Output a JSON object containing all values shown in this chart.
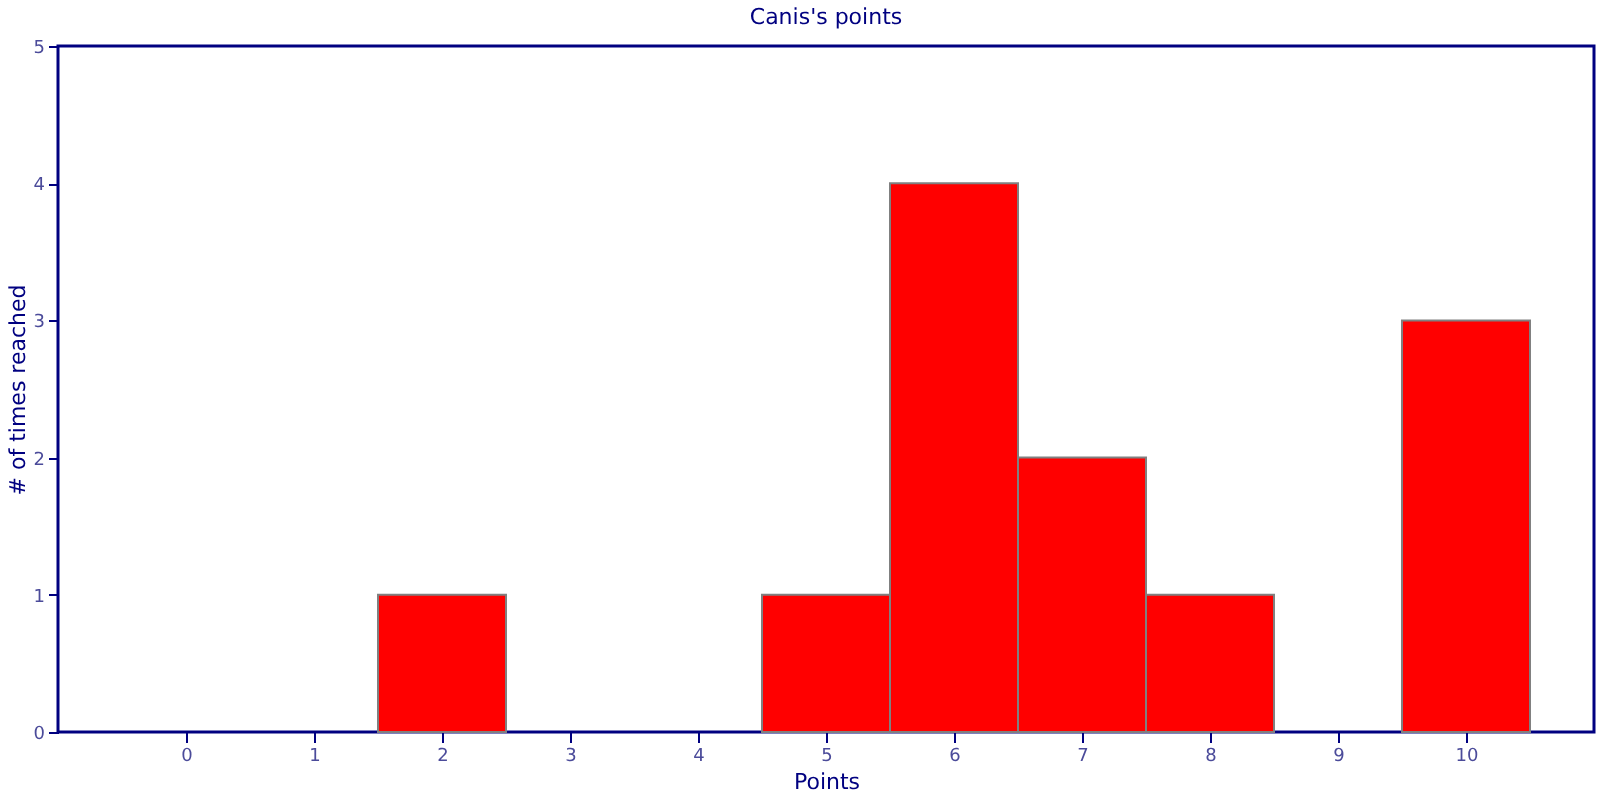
{
  "chart_data": {
    "type": "histogram",
    "title": "Canis's points",
    "xlabel": "Points",
    "ylabel": "# of times reached",
    "bins": [
      -0.5,
      0.5,
      1.5,
      2.5,
      3.5,
      4.5,
      5.5,
      6.5,
      7.5,
      8.5,
      9.5,
      10.5
    ],
    "values": [
      0,
      0,
      1,
      0,
      0,
      1,
      4,
      2,
      1,
      0,
      3
    ],
    "color": "#ff0000",
    "xlim": [
      -1,
      11
    ],
    "xticks": [
      0,
      1,
      2,
      3,
      4,
      5,
      6,
      7,
      8,
      9,
      10
    ],
    "ylim": [
      0,
      5
    ],
    "yticks": [
      0,
      1,
      2,
      3,
      4,
      5
    ],
    "grid": false
  }
}
